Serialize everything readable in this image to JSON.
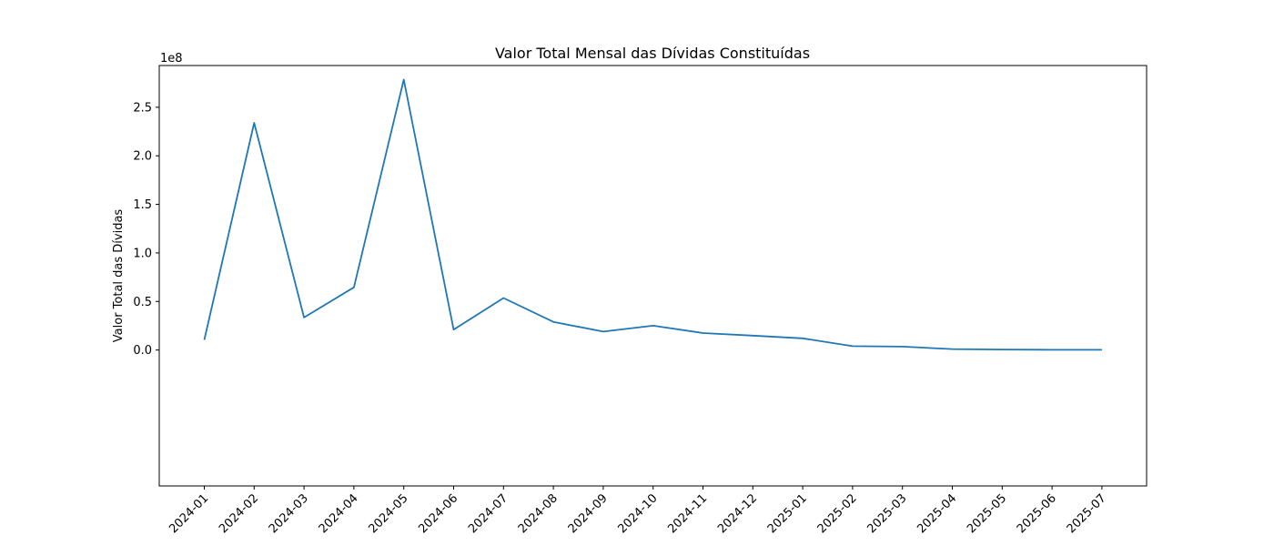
{
  "chart_data": {
    "type": "line",
    "title": "Valor Total Mensal das Dívidas Constituídas",
    "xlabel": "",
    "ylabel": "Valor Total das Dívidas",
    "y_offset_label": "1e8",
    "y_scale": 100000000,
    "ylim": [
      -1.4,
      2.93
    ],
    "y_ticks": [
      0.0,
      0.5,
      1.0,
      1.5,
      2.0,
      2.5
    ],
    "y_tick_labels": [
      "0.0",
      "0.5",
      "1.0",
      "1.5",
      "2.0",
      "2.5"
    ],
    "grid": false,
    "categories": [
      "2024-01",
      "2024-02",
      "2024-03",
      "2024-04",
      "2024-05",
      "2024-06",
      "2024-07",
      "2024-08",
      "2024-09",
      "2024-10",
      "2024-11",
      "2024-12",
      "2025-01",
      "2025-02",
      "2025-03",
      "2025-04",
      "2025-05",
      "2025-06",
      "2025-07"
    ],
    "series": [
      {
        "color": "#1f77b4",
        "values": [
          0.105,
          2.34,
          0.335,
          0.645,
          2.785,
          0.21,
          0.535,
          0.29,
          0.19,
          0.25,
          0.175,
          0.148,
          0.12,
          0.04,
          0.035,
          0.01,
          0.005,
          0.002,
          0.002
        ]
      }
    ]
  }
}
